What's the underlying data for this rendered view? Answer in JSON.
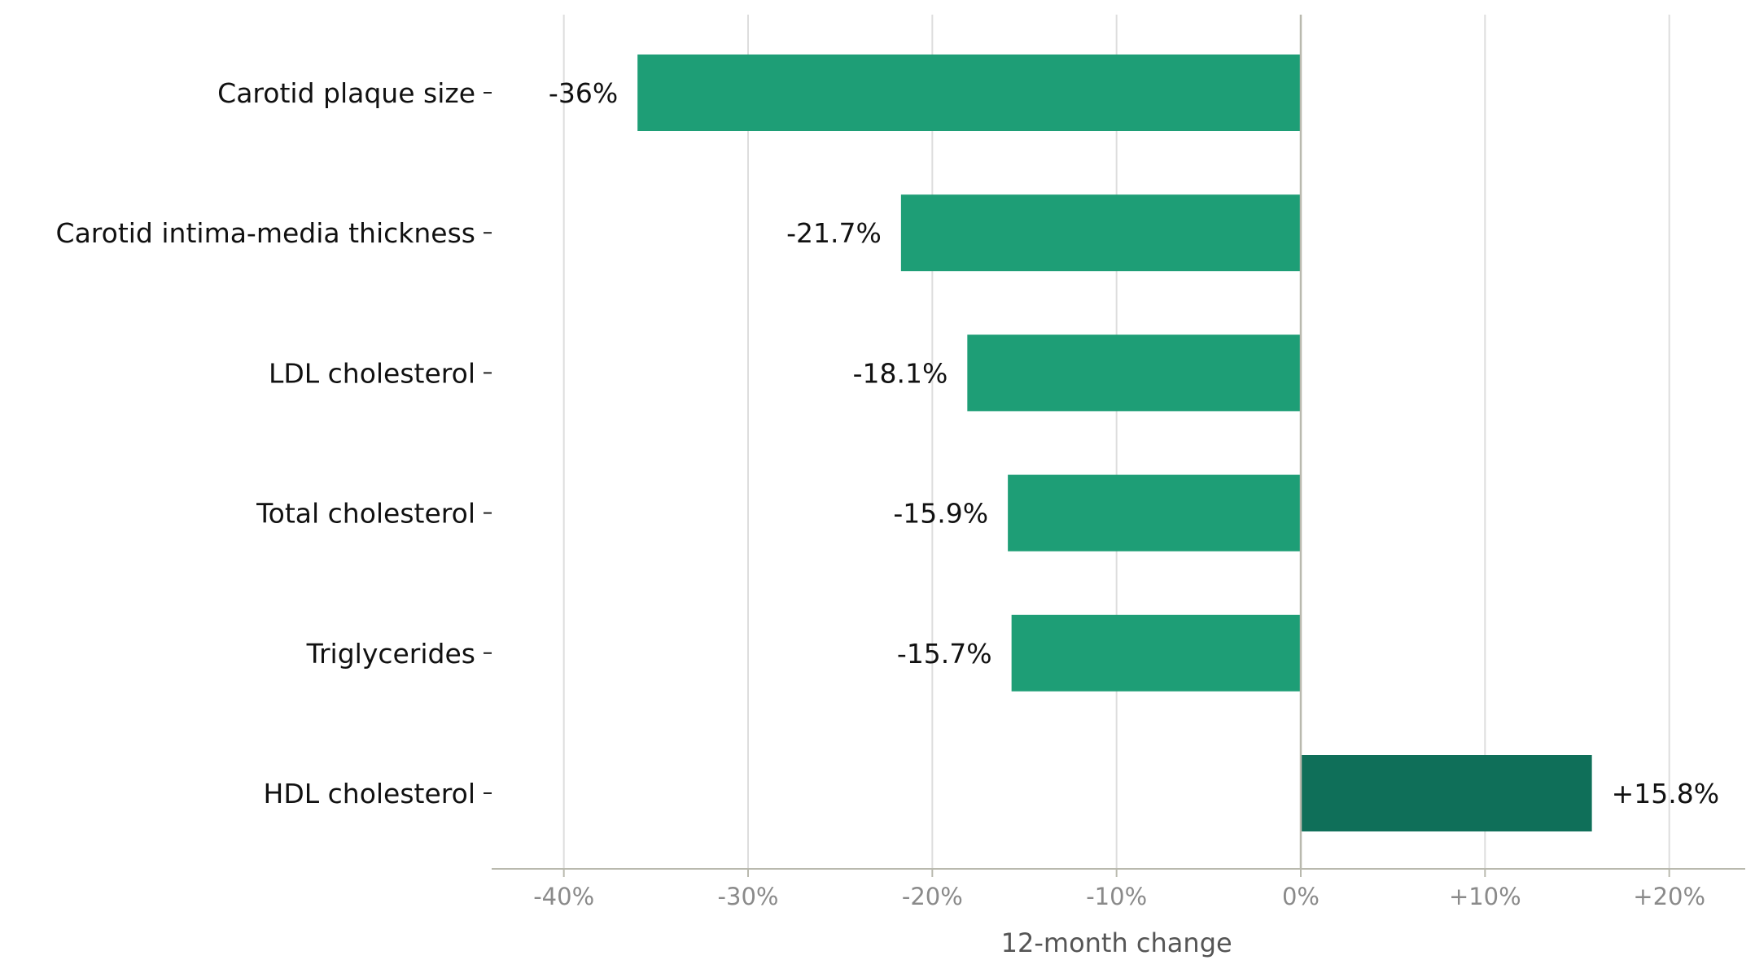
{
  "chart_data": {
    "type": "bar",
    "orientation": "horizontal",
    "categories": [
      "Carotid plaque size",
      "Carotid intima-media thickness",
      "LDL cholesterol",
      "Total cholesterol",
      "Triglycerides",
      "HDL cholesterol"
    ],
    "values": [
      -36,
      -21.7,
      -18.1,
      -15.9,
      -15.7,
      15.8
    ],
    "value_labels": [
      "-36%",
      "-21.7%",
      "-18.1%",
      "-15.9%",
      "-15.7%",
      "+15.8%"
    ],
    "title": "",
    "xlabel": "12-month change",
    "ylabel": "",
    "xlim": [
      -40,
      20
    ],
    "xticks": [
      -40,
      -30,
      -20,
      -10,
      0,
      10,
      20
    ],
    "xtick_labels": [
      "-40%",
      "-30%",
      "-20%",
      "-10%",
      "0%",
      "+10%",
      "+20%"
    ],
    "grid": "vertical",
    "legend": "none",
    "colors": {
      "negative": "#1e9e76",
      "positive": "#0f6f59",
      "grid": "#dddddd",
      "axis": "#b9b9ae",
      "zero_line": "#b9b9ae"
    }
  }
}
